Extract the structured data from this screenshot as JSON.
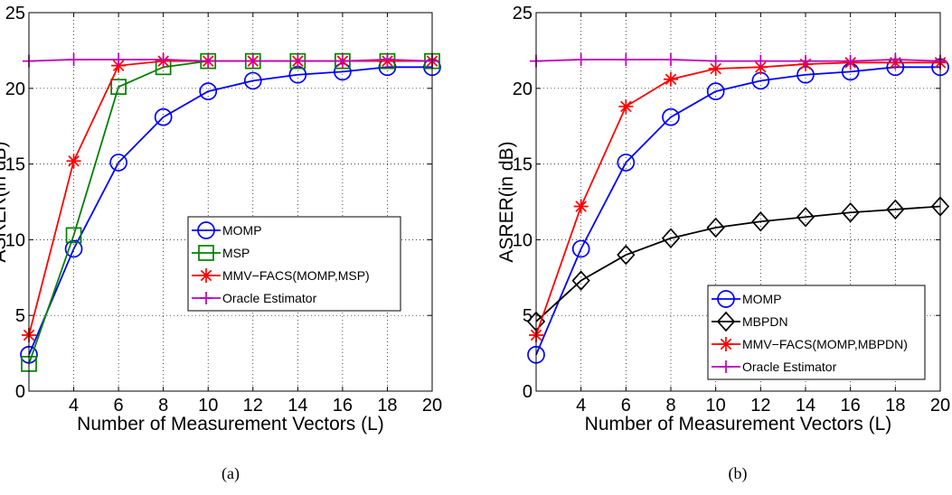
{
  "chart_data": [
    {
      "type": "line",
      "caption": "(a)",
      "xlabel": "Number of Measurement Vectors (L)",
      "ylabel": "ASRER(in dB)",
      "xlim": [
        2,
        20
      ],
      "ylim": [
        0,
        25
      ],
      "xticks": [
        4,
        6,
        8,
        10,
        12,
        14,
        16,
        18,
        20
      ],
      "yticks": [
        0,
        5,
        10,
        15,
        20,
        25
      ],
      "grid": true,
      "legend_position": "center-right",
      "x": [
        2,
        4,
        6,
        8,
        10,
        12,
        14,
        16,
        18,
        20
      ],
      "series": [
        {
          "name": "MOMP",
          "color": "#0000ff",
          "marker": "circle",
          "values": [
            2.4,
            9.4,
            15.1,
            18.1,
            19.8,
            20.5,
            20.9,
            21.1,
            21.4,
            21.4
          ]
        },
        {
          "name": "MSP",
          "color": "#008000",
          "marker": "square",
          "values": [
            1.8,
            10.3,
            20.1,
            21.4,
            21.8,
            21.8,
            21.8,
            21.8,
            21.8,
            21.8
          ]
        },
        {
          "name": "MMV−FACS(MOMP,MSP)",
          "color": "#ff0000",
          "marker": "asterisk",
          "values": [
            3.7,
            15.2,
            21.5,
            21.8,
            21.8,
            21.8,
            21.8,
            21.8,
            21.8,
            21.8
          ]
        },
        {
          "name": "Oracle Estimator",
          "color": "#bf00bf",
          "marker": "plus",
          "values": [
            21.8,
            21.9,
            21.9,
            21.9,
            21.8,
            21.8,
            21.8,
            21.8,
            21.9,
            21.8
          ]
        }
      ]
    },
    {
      "type": "line",
      "caption": "(b)",
      "xlabel": "Number of Measurement Vectors (L)",
      "ylabel": "ASRER(in dB)",
      "xlim": [
        2,
        20
      ],
      "ylim": [
        0,
        25
      ],
      "xticks": [
        4,
        6,
        8,
        10,
        12,
        14,
        16,
        18,
        20
      ],
      "yticks": [
        0,
        5,
        10,
        15,
        20,
        25
      ],
      "grid": true,
      "legend_position": "bottom-right",
      "x": [
        2,
        4,
        6,
        8,
        10,
        12,
        14,
        16,
        18,
        20
      ],
      "series": [
        {
          "name": "MOMP",
          "color": "#0000ff",
          "marker": "circle",
          "values": [
            2.4,
            9.4,
            15.1,
            18.1,
            19.8,
            20.5,
            20.9,
            21.1,
            21.4,
            21.4
          ]
        },
        {
          "name": "MBPDN",
          "color": "#000000",
          "marker": "diamond",
          "values": [
            4.6,
            7.3,
            9.0,
            10.1,
            10.8,
            11.2,
            11.5,
            11.8,
            12.0,
            12.2
          ]
        },
        {
          "name": "MMV−FACS(MOMP,MBPDN)",
          "color": "#ff0000",
          "marker": "asterisk",
          "values": [
            3.7,
            12.2,
            18.8,
            20.6,
            21.3,
            21.4,
            21.6,
            21.7,
            21.7,
            21.7
          ]
        },
        {
          "name": "Oracle Estimator",
          "color": "#bf00bf",
          "marker": "plus",
          "values": [
            21.8,
            21.9,
            21.9,
            21.9,
            21.8,
            21.8,
            21.8,
            21.8,
            21.9,
            21.8
          ]
        }
      ]
    }
  ]
}
